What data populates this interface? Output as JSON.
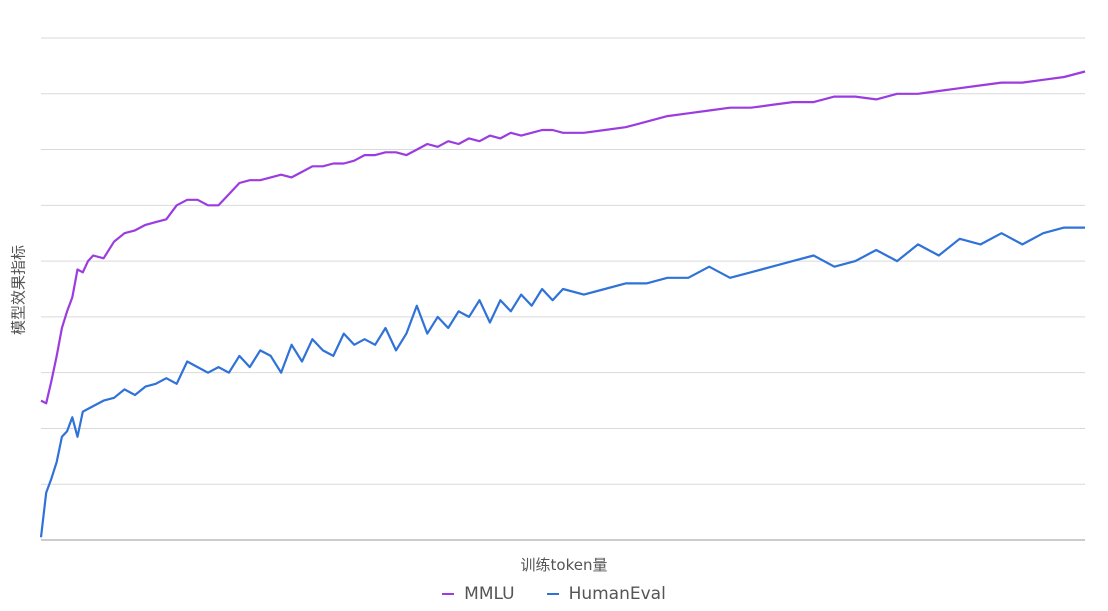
{
  "chart_data": {
    "type": "line",
    "xlabel": "训练token量",
    "ylabel": "模型效果指标",
    "ylim": [
      0,
      9
    ],
    "grid": true,
    "legend_position": "bottom",
    "series": [
      {
        "name": "MMLU",
        "color": "#9b3ce0",
        "x": [
          0,
          0.005,
          0.01,
          0.015,
          0.02,
          0.025,
          0.03,
          0.035,
          0.04,
          0.045,
          0.05,
          0.06,
          0.07,
          0.08,
          0.09,
          0.1,
          0.11,
          0.12,
          0.13,
          0.14,
          0.15,
          0.16,
          0.17,
          0.18,
          0.19,
          0.2,
          0.21,
          0.22,
          0.23,
          0.24,
          0.25,
          0.26,
          0.27,
          0.28,
          0.29,
          0.3,
          0.31,
          0.32,
          0.33,
          0.34,
          0.35,
          0.36,
          0.37,
          0.38,
          0.39,
          0.4,
          0.41,
          0.42,
          0.43,
          0.44,
          0.45,
          0.46,
          0.47,
          0.48,
          0.49,
          0.5,
          0.52,
          0.54,
          0.56,
          0.58,
          0.6,
          0.62,
          0.64,
          0.66,
          0.68,
          0.7,
          0.72,
          0.74,
          0.76,
          0.78,
          0.8,
          0.82,
          0.84,
          0.86,
          0.88,
          0.9,
          0.92,
          0.94,
          0.96,
          0.98,
          1.0
        ],
        "y": [
          2.5,
          2.45,
          2.85,
          3.3,
          3.8,
          4.1,
          4.35,
          4.85,
          4.8,
          5.0,
          5.1,
          5.05,
          5.35,
          5.5,
          5.55,
          5.65,
          5.7,
          5.75,
          6.0,
          6.1,
          6.1,
          6.0,
          6.0,
          6.2,
          6.4,
          6.45,
          6.45,
          6.5,
          6.55,
          6.5,
          6.6,
          6.7,
          6.7,
          6.75,
          6.75,
          6.8,
          6.9,
          6.9,
          6.95,
          6.95,
          6.9,
          7.0,
          7.1,
          7.05,
          7.15,
          7.1,
          7.2,
          7.15,
          7.25,
          7.2,
          7.3,
          7.25,
          7.3,
          7.35,
          7.35,
          7.3,
          7.3,
          7.35,
          7.4,
          7.5,
          7.6,
          7.65,
          7.7,
          7.75,
          7.75,
          7.8,
          7.85,
          7.85,
          7.95,
          7.95,
          7.9,
          8.0,
          8.0,
          8.05,
          8.1,
          8.15,
          8.2,
          8.2,
          8.25,
          8.3,
          8.4
        ]
      },
      {
        "name": "HumanEval",
        "color": "#2f72d8",
        "x": [
          0,
          0.005,
          0.01,
          0.015,
          0.02,
          0.025,
          0.03,
          0.035,
          0.04,
          0.045,
          0.05,
          0.06,
          0.07,
          0.08,
          0.09,
          0.1,
          0.11,
          0.12,
          0.13,
          0.14,
          0.15,
          0.16,
          0.17,
          0.18,
          0.19,
          0.2,
          0.21,
          0.22,
          0.23,
          0.24,
          0.25,
          0.26,
          0.27,
          0.28,
          0.29,
          0.3,
          0.31,
          0.32,
          0.33,
          0.34,
          0.35,
          0.36,
          0.37,
          0.38,
          0.39,
          0.4,
          0.41,
          0.42,
          0.43,
          0.44,
          0.45,
          0.46,
          0.47,
          0.48,
          0.49,
          0.5,
          0.52,
          0.54,
          0.56,
          0.58,
          0.6,
          0.62,
          0.64,
          0.66,
          0.68,
          0.7,
          0.72,
          0.74,
          0.76,
          0.78,
          0.8,
          0.82,
          0.84,
          0.86,
          0.88,
          0.9,
          0.92,
          0.94,
          0.96,
          0.98,
          1.0
        ],
        "y": [
          0.05,
          0.85,
          1.1,
          1.4,
          1.85,
          1.95,
          2.2,
          1.85,
          2.3,
          2.35,
          2.4,
          2.5,
          2.55,
          2.7,
          2.6,
          2.75,
          2.8,
          2.9,
          2.8,
          3.2,
          3.1,
          3.0,
          3.1,
          3.0,
          3.3,
          3.1,
          3.4,
          3.3,
          3.0,
          3.5,
          3.2,
          3.6,
          3.4,
          3.3,
          3.7,
          3.5,
          3.6,
          3.5,
          3.8,
          3.4,
          3.7,
          4.2,
          3.7,
          4.0,
          3.8,
          4.1,
          4.0,
          4.3,
          3.9,
          4.3,
          4.1,
          4.4,
          4.2,
          4.5,
          4.3,
          4.5,
          4.4,
          4.5,
          4.6,
          4.6,
          4.7,
          4.7,
          4.9,
          4.7,
          4.8,
          4.9,
          5.0,
          5.1,
          4.9,
          5.0,
          5.2,
          5.0,
          5.3,
          5.1,
          5.4,
          5.3,
          5.5,
          5.3,
          5.5,
          5.6,
          5.6
        ]
      }
    ]
  }
}
